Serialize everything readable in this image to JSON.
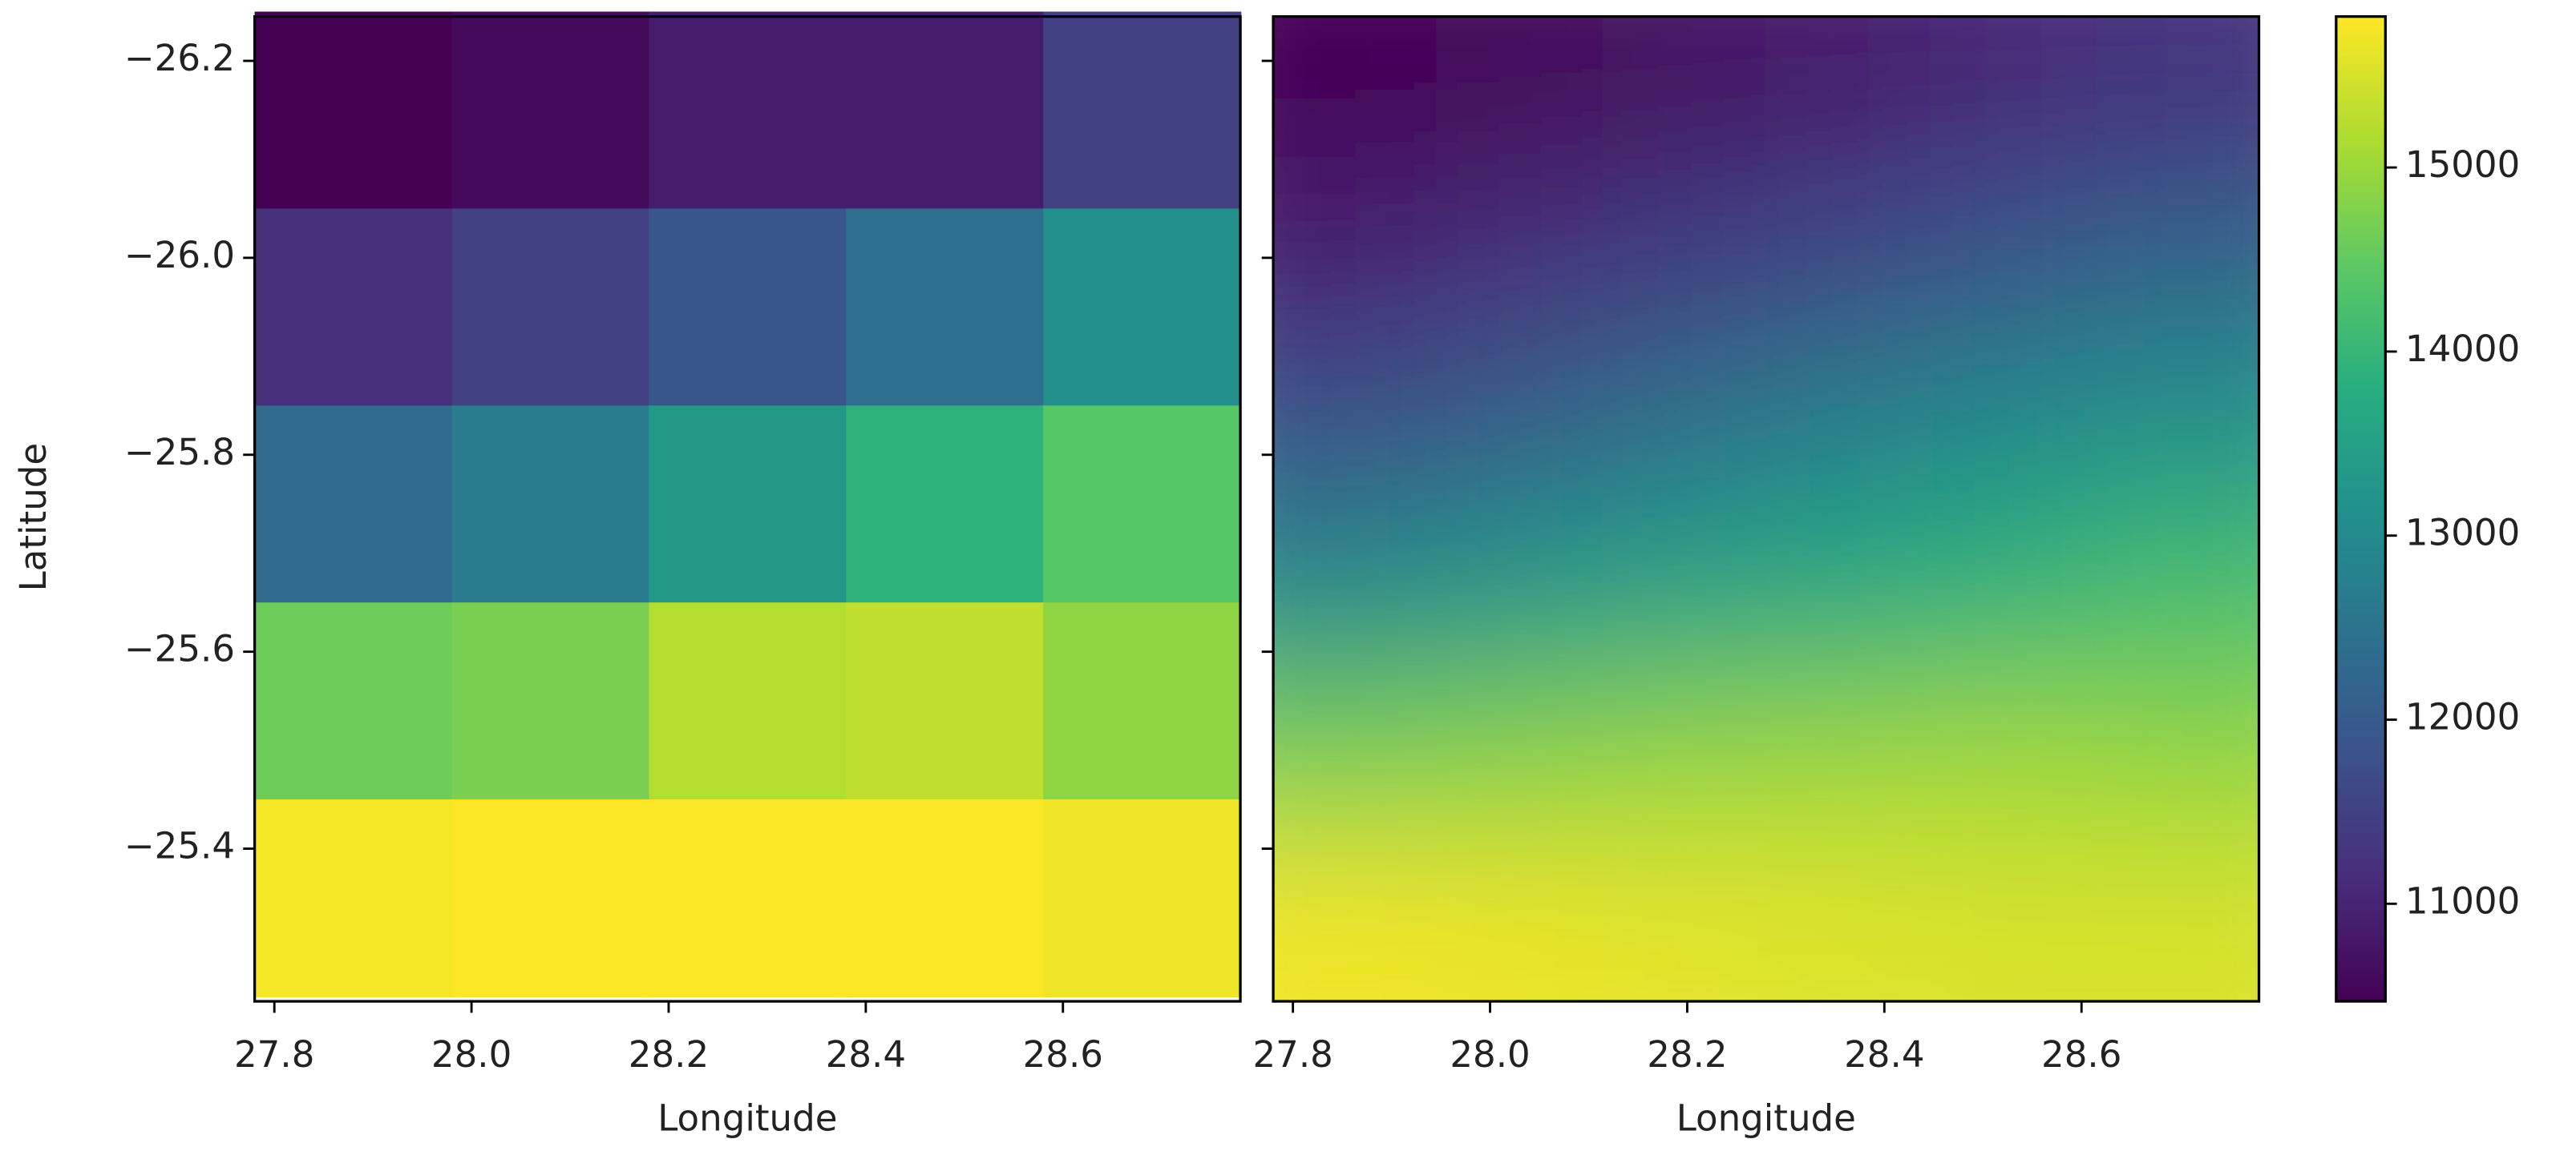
{
  "chart_data": [
    {
      "type": "heatmap",
      "xlabel": "Longitude",
      "ylabel": "Latitude",
      "x": [
        27.88,
        28.08,
        28.28,
        28.48,
        28.68
      ],
      "y": [
        -26.15,
        -25.95,
        -25.75,
        -25.55,
        -25.35
      ],
      "values": [
        [
          10470,
          10600,
          10900,
          10900,
          11500
        ],
        [
          11200,
          11500,
          11900,
          12400,
          13100
        ],
        [
          12300,
          12700,
          13300,
          13900,
          14400
        ],
        [
          14600,
          14700,
          15200,
          15300,
          14900
        ],
        [
          15750,
          15800,
          15800,
          15800,
          15700
        ]
      ],
      "xlim": [
        27.78,
        28.78
      ],
      "ylim": [
        -25.245,
        -26.245
      ],
      "xticks": [
        27.8,
        {
          "value": 28,
          "label": "28.0"
        },
        28.2,
        28.4,
        28.6
      ],
      "yticks": [
        {
          "value": -26.2,
          "label": "−26.2"
        },
        {
          "value": -26,
          "label": "−26.0"
        },
        {
          "value": -25.8,
          "label": "−25.8"
        },
        {
          "value": -25.6,
          "label": "−25.6"
        },
        {
          "value": -25.4,
          "label": "−25.4"
        }
      ]
    },
    {
      "type": "heatmap",
      "smooth": true,
      "xlabel": "Longitude",
      "x": [
        27.863,
        28.03,
        28.197,
        28.363,
        28.53,
        28.697
      ],
      "y": [
        -26.162,
        -25.995,
        -25.828,
        -25.662,
        -25.495,
        -25.328
      ],
      "values": [
        [
          10500,
          10600,
          10750,
          10900,
          11100,
          11300
        ],
        [
          11000,
          11200,
          11450,
          11700,
          11950,
          12200
        ],
        [
          11800,
          12100,
          12450,
          12750,
          13000,
          13200
        ],
        [
          13000,
          13300,
          13550,
          13750,
          13950,
          14200
        ],
        [
          14700,
          14800,
          14900,
          14950,
          15000,
          14900
        ],
        [
          15700,
          15650,
          15600,
          15550,
          15500,
          15500
        ]
      ],
      "xlim": [
        27.78,
        28.78
      ],
      "ylim": [
        -25.245,
        -26.245
      ],
      "xticks": [
        27.8,
        {
          "value": 28,
          "label": "28.0"
        },
        28.2,
        28.4,
        28.6
      ]
    }
  ],
  "colorbar": {
    "colormap": "viridis",
    "lim": [
      10470,
      15820
    ],
    "ticks": [
      11000,
      12000,
      13000,
      14000,
      15000
    ]
  }
}
